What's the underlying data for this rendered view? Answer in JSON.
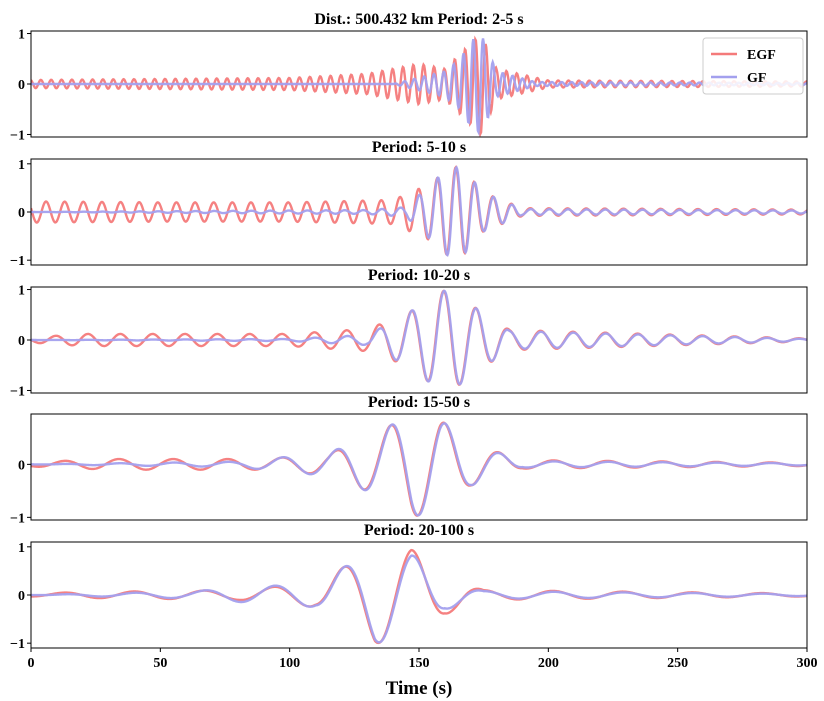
{
  "chart_data": {
    "type": "line",
    "xlabel": "Time (s)",
    "xlim": [
      0,
      300
    ],
    "xticks": [
      "0",
      "50",
      "100",
      "150",
      "200",
      "250",
      "300"
    ],
    "x_tick_values": [
      0,
      50,
      100,
      150,
      200,
      250,
      300
    ],
    "legend": {
      "placement": "top-right",
      "entries": [
        "EGF",
        "GF"
      ]
    },
    "colors": {
      "EGF": "#f47a7a",
      "GF": "#a3a0ee"
    },
    "panels": [
      {
        "title": "Dist.: 500.432 km  Period: 2-5 s",
        "ylim": [
          -1.05,
          1.05
        ],
        "yticks": [
          "1",
          "0",
          "−1"
        ],
        "y_tick_values": [
          1,
          0,
          -1
        ],
        "series": [
          {
            "name": "EGF",
            "envelope": [
              [
                0,
                0.08
              ],
              [
                50,
                0.1
              ],
              [
                100,
                0.12
              ],
              [
                130,
                0.2
              ],
              [
                150,
                0.4
              ],
              [
                160,
                0.3
              ],
              [
                166,
                0.6
              ],
              [
                170,
                0.8
              ],
              [
                174,
                1.0
              ],
              [
                180,
                0.3
              ],
              [
                200,
                0.07
              ],
              [
                300,
                0.05
              ]
            ],
            "period": 4.0,
            "phase": 0.3
          },
          {
            "name": "GF",
            "envelope": [
              [
                0,
                0.0
              ],
              [
                140,
                0.0
              ],
              [
                160,
                0.25
              ],
              [
                166,
                0.5
              ],
              [
                170,
                0.85
              ],
              [
                174,
                1.0
              ],
              [
                180,
                0.25
              ],
              [
                195,
                0.04
              ],
              [
                300,
                0.02
              ]
            ],
            "period": 3.8,
            "phase": 0.0
          }
        ]
      },
      {
        "title": "Period: 5-10 s",
        "ylim": [
          -1.1,
          1.1
        ],
        "yticks": [
          "1",
          "0",
          "−1"
        ],
        "y_tick_values": [
          1,
          0,
          -1
        ],
        "series": [
          {
            "name": "EGF",
            "envelope": [
              [
                0,
                0.22
              ],
              [
                50,
                0.2
              ],
              [
                100,
                0.2
              ],
              [
                140,
                0.25
              ],
              [
                155,
                0.6
              ],
              [
                162,
                0.95
              ],
              [
                167,
                0.9
              ],
              [
                175,
                0.4
              ],
              [
                190,
                0.08
              ],
              [
                300,
                0.05
              ]
            ],
            "period": 7.2,
            "phase": 1.2
          },
          {
            "name": "GF",
            "envelope": [
              [
                0,
                0.0
              ],
              [
                130,
                0.04
              ],
              [
                145,
                0.1
              ],
              [
                155,
                0.6
              ],
              [
                162,
                0.95
              ],
              [
                167,
                0.9
              ],
              [
                175,
                0.4
              ],
              [
                190,
                0.06
              ],
              [
                300,
                0.03
              ]
            ],
            "period": 7.2,
            "phase": 1.0
          }
        ]
      },
      {
        "title": "Period: 10-20 s",
        "ylim": [
          -1.05,
          1.05
        ],
        "yticks": [
          "1",
          "0",
          "−1"
        ],
        "y_tick_values": [
          1,
          0,
          -1
        ],
        "series": [
          {
            "name": "EGF",
            "envelope": [
              [
                0,
                0.05
              ],
              [
                20,
                0.12
              ],
              [
                100,
                0.12
              ],
              [
                130,
                0.22
              ],
              [
                145,
                0.5
              ],
              [
                157,
                0.95
              ],
              [
                163,
                1.0
              ],
              [
                170,
                0.7
              ],
              [
                185,
                0.2
              ],
              [
                300,
                0.03
              ]
            ],
            "period": 12.5,
            "phase": 1.5
          },
          {
            "name": "GF",
            "envelope": [
              [
                0,
                0.0
              ],
              [
                100,
                0.02
              ],
              [
                130,
                0.1
              ],
              [
                145,
                0.5
              ],
              [
                157,
                0.95
              ],
              [
                163,
                1.0
              ],
              [
                170,
                0.7
              ],
              [
                185,
                0.18
              ],
              [
                300,
                0.02
              ]
            ],
            "period": 12.5,
            "phase": 1.4
          }
        ]
      },
      {
        "title": "Period: 15-50 s",
        "ylim": [
          -1.05,
          0.95
        ],
        "yticks": [
          "0",
          "−1"
        ],
        "y_tick_values": [
          0,
          -1
        ],
        "series": [
          {
            "name": "EGF",
            "envelope": [
              [
                0,
                0.04
              ],
              [
                30,
                0.1
              ],
              [
                90,
                0.1
              ],
              [
                115,
                0.2
              ],
              [
                135,
                0.6
              ],
              [
                147,
                1.0
              ],
              [
                158,
                0.85
              ],
              [
                170,
                0.4
              ],
              [
                190,
                0.08
              ],
              [
                300,
                0.03
              ]
            ],
            "period": 21.0,
            "phase": 2.4
          },
          {
            "name": "GF",
            "envelope": [
              [
                0,
                0.0
              ],
              [
                80,
                0.05
              ],
              [
                115,
                0.22
              ],
              [
                135,
                0.6
              ],
              [
                147,
                1.0
              ],
              [
                158,
                0.85
              ],
              [
                170,
                0.4
              ],
              [
                190,
                0.06
              ],
              [
                300,
                0.02
              ]
            ],
            "period": 21.0,
            "phase": 2.3
          }
        ]
      },
      {
        "title": "Period: 20-100 s",
        "ylim": [
          -1.1,
          1.1
        ],
        "yticks": [
          "1",
          "0",
          "−1"
        ],
        "y_tick_values": [
          1,
          0,
          -1
        ],
        "series": [
          {
            "name": "EGF",
            "envelope": [
              [
                0,
                0.03
              ],
              [
                20,
                0.06
              ],
              [
                80,
                0.1
              ],
              [
                110,
                0.25
              ],
              [
                125,
                0.7
              ],
              [
                133,
                1.0
              ],
              [
                147,
                0.95
              ],
              [
                160,
                0.4
              ],
              [
                175,
                0.1
              ],
              [
                300,
                0.03
              ]
            ],
            "period": 27.0,
            "phase": 3.3
          },
          {
            "name": "GF",
            "envelope": [
              [
                0,
                0.0
              ],
              [
                60,
                0.07
              ],
              [
                110,
                0.25
              ],
              [
                125,
                0.7
              ],
              [
                133,
                1.0
              ],
              [
                147,
                0.85
              ],
              [
                160,
                0.3
              ],
              [
                175,
                0.08
              ],
              [
                300,
                0.02
              ]
            ],
            "period": 27.0,
            "phase": 3.2
          }
        ]
      }
    ]
  }
}
